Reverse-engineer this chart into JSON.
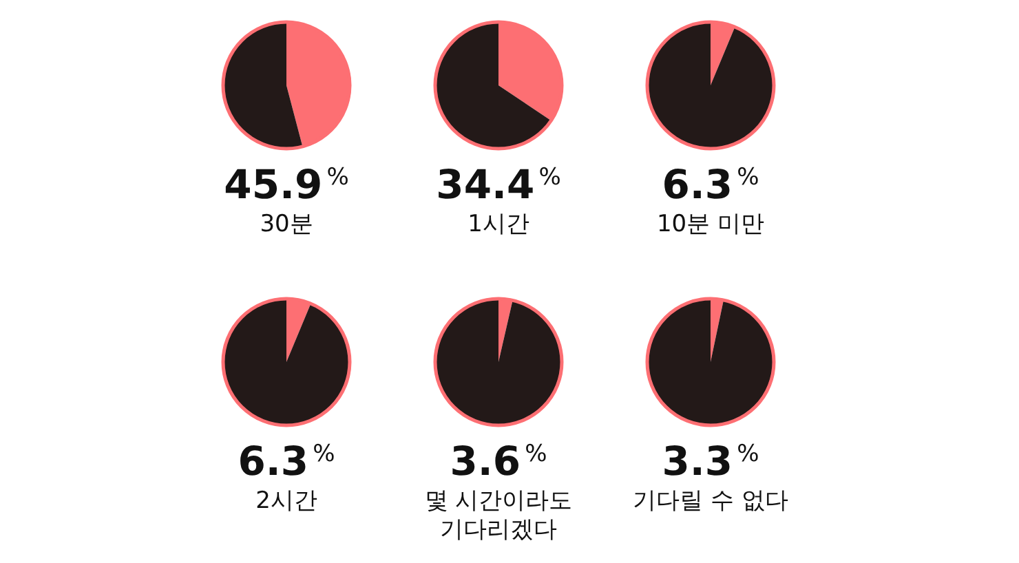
{
  "chart_data": [
    {
      "type": "pie",
      "title": "45.9%",
      "subtitle": "30분",
      "categories": [
        null,
        null
      ],
      "values": [
        45.9,
        54.1
      ],
      "colors": [
        "#fd6f73",
        "#231918"
      ]
    },
    {
      "type": "pie",
      "title": "34.4%",
      "subtitle": "1시간",
      "categories": [
        null,
        null
      ],
      "values": [
        34.4,
        65.6
      ],
      "colors": [
        "#fd6f73",
        "#231918"
      ]
    },
    {
      "type": "pie",
      "title": "6.3%",
      "subtitle": "10분 미만",
      "categories": [
        null,
        null
      ],
      "values": [
        6.3,
        93.7
      ],
      "colors": [
        "#fd6f73",
        "#231918"
      ]
    },
    {
      "type": "pie",
      "title": "6.3%",
      "subtitle": "2시간",
      "categories": [
        null,
        null
      ],
      "values": [
        6.3,
        93.7
      ],
      "colors": [
        "#fd6f73",
        "#231918"
      ]
    },
    {
      "type": "pie",
      "title": "3.6%",
      "subtitle": "몇 시간이라도 기다리겠다",
      "categories": [
        null,
        null
      ],
      "values": [
        3.6,
        96.4
      ],
      "colors": [
        "#fd6f73",
        "#231918"
      ]
    },
    {
      "type": "pie",
      "title": "3.3%",
      "subtitle": "기다릴 수 없다",
      "categories": [
        null,
        null
      ],
      "values": [
        3.3,
        96.7
      ],
      "colors": [
        "#fd6f73",
        "#231918"
      ]
    }
  ]
}
